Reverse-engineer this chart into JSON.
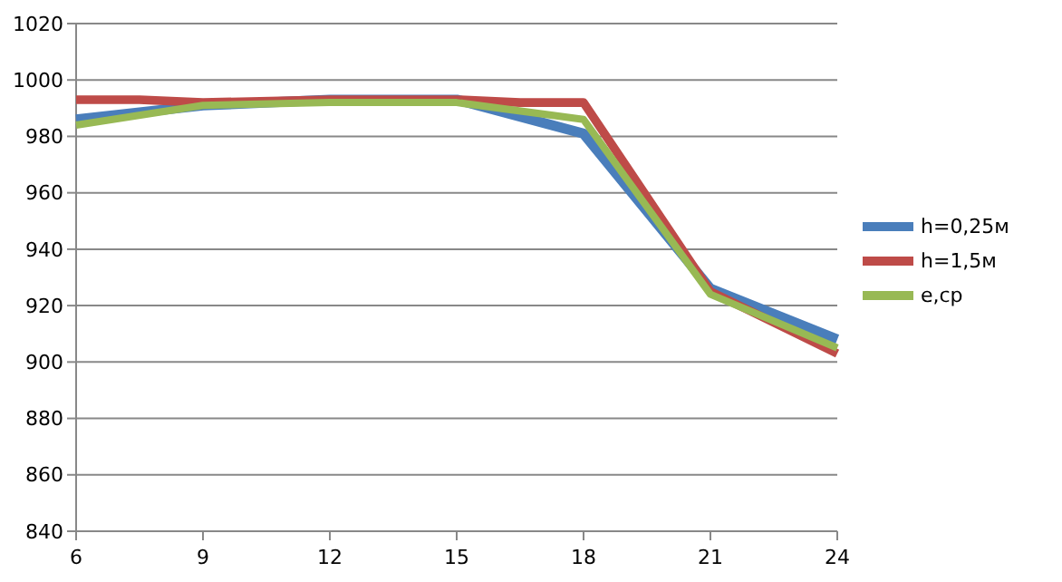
{
  "chart_data": {
    "type": "line",
    "xlim": [
      6,
      24
    ],
    "xticks": [
      6,
      9,
      12,
      15,
      18,
      21,
      24
    ],
    "ylim": [
      840,
      1020
    ],
    "yticks": [
      840,
      860,
      880,
      900,
      920,
      940,
      960,
      980,
      1000,
      1020
    ],
    "grid": "y",
    "legend": "right",
    "marker": "none",
    "line_style": "solid",
    "series": [
      {
        "name": "h=0,25м",
        "color": "#4a7ebb",
        "x": [
          6,
          9,
          12,
          15,
          18,
          21,
          24
        ],
        "values": [
          986,
          991,
          993,
          993,
          981,
          926,
          908
        ]
      },
      {
        "name": "h=1,5м",
        "color": "#be4b48",
        "x": [
          6,
          7.5,
          9,
          12,
          15,
          16.5,
          18,
          21,
          24
        ],
        "values": [
          993,
          993,
          992,
          993,
          993,
          992,
          992,
          925,
          903
        ]
      },
      {
        "name": "e,cp",
        "color": "#98b954",
        "x": [
          6,
          9,
          12,
          15,
          18,
          21,
          24
        ],
        "values": [
          984,
          991,
          992,
          992,
          986,
          924,
          905
        ]
      }
    ]
  }
}
